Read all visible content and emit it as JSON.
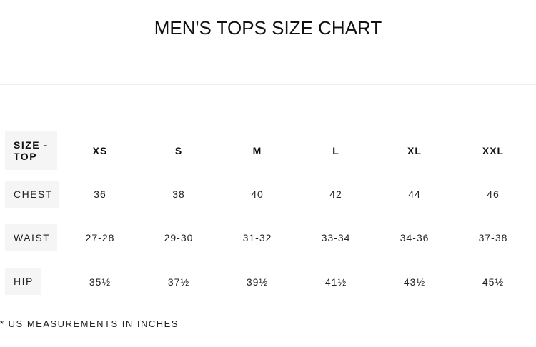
{
  "title": "MEN'S TOPS SIZE CHART",
  "table": {
    "header_label": "SIZE - TOP",
    "sizes": [
      "XS",
      "S",
      "M",
      "L",
      "XL",
      "XXL"
    ],
    "rows": [
      {
        "label": "CHEST",
        "values": [
          "36",
          "38",
          "40",
          "42",
          "44",
          "46"
        ]
      },
      {
        "label": "WAIST",
        "values": [
          "27-28",
          "29-30",
          "31-32",
          "33-34",
          "34-36",
          "37-38"
        ]
      },
      {
        "label": "HIP",
        "values": [
          "35½",
          "37½",
          "39½",
          "41½",
          "43½",
          "45½"
        ]
      }
    ]
  },
  "footnote": "* US MEASUREMENTS IN INCHES"
}
